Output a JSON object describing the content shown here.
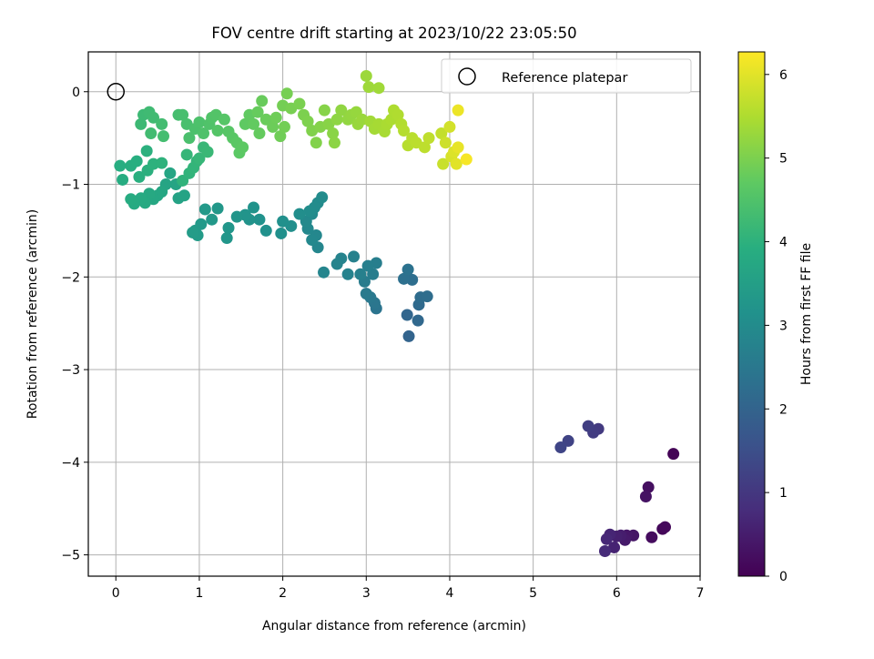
{
  "chart_data": {
    "type": "scatter",
    "title": "FOV centre drift starting at 2023/10/22 23:05:50",
    "xlabel": "Angular distance from reference (arcmin)",
    "ylabel": "Rotation from reference (arcmin)",
    "xlim": [
      -0.33,
      7.0
    ],
    "ylim": [
      -5.23,
      0.43
    ],
    "xticks": [
      0,
      1,
      2,
      3,
      4,
      5,
      6,
      7
    ],
    "yticks": [
      0,
      -1,
      -2,
      -3,
      -4,
      -5
    ],
    "xtick_labels": [
      "0",
      "1",
      "2",
      "3",
      "4",
      "5",
      "6",
      "7"
    ],
    "ytick_labels": [
      "0",
      "−1",
      "−2",
      "−3",
      "−4",
      "−5"
    ],
    "grid": true,
    "legend": {
      "position": "top-right",
      "entries": [
        "Reference platepar"
      ]
    },
    "reference_point": {
      "x": 0,
      "y": 0,
      "marker": "open-circle"
    },
    "colorbar": {
      "label": "Hours from first FF file",
      "colormap": "viridis",
      "range": [
        0,
        6.27
      ],
      "ticks": [
        0,
        1,
        2,
        3,
        4,
        5,
        6
      ],
      "tick_labels": [
        "0",
        "1",
        "2",
        "3",
        "4",
        "5",
        "6"
      ]
    },
    "points": [
      {
        "x": 6.68,
        "y": -3.91,
        "t": 0.05
      },
      {
        "x": 6.55,
        "y": -4.72,
        "t": 0.1
      },
      {
        "x": 6.58,
        "y": -4.7,
        "t": 0.15
      },
      {
        "x": 6.42,
        "y": -4.81,
        "t": 0.2
      },
      {
        "x": 6.38,
        "y": -4.27,
        "t": 0.25
      },
      {
        "x": 6.35,
        "y": -4.37,
        "t": 0.3
      },
      {
        "x": 6.2,
        "y": -4.79,
        "t": 0.35
      },
      {
        "x": 6.12,
        "y": -4.79,
        "t": 0.4
      },
      {
        "x": 6.1,
        "y": -4.84,
        "t": 0.45
      },
      {
        "x": 6.05,
        "y": -4.79,
        "t": 0.5
      },
      {
        "x": 6.0,
        "y": -4.8,
        "t": 0.55
      },
      {
        "x": 5.97,
        "y": -4.92,
        "t": 0.6
      },
      {
        "x": 5.92,
        "y": -4.78,
        "t": 0.65
      },
      {
        "x": 5.88,
        "y": -4.83,
        "t": 0.7
      },
      {
        "x": 5.86,
        "y": -4.96,
        "t": 0.75
      },
      {
        "x": 5.78,
        "y": -3.64,
        "t": 1.05
      },
      {
        "x": 5.72,
        "y": -3.68,
        "t": 1.1
      },
      {
        "x": 5.66,
        "y": -3.61,
        "t": 1.15
      },
      {
        "x": 5.42,
        "y": -3.77,
        "t": 1.25
      },
      {
        "x": 5.33,
        "y": -3.84,
        "t": 1.3
      },
      {
        "x": 3.51,
        "y": -2.64,
        "t": 2.0
      },
      {
        "x": 3.49,
        "y": -2.41,
        "t": 2.05
      },
      {
        "x": 3.62,
        "y": -2.47,
        "t": 2.1
      },
      {
        "x": 3.63,
        "y": -2.3,
        "t": 2.15
      },
      {
        "x": 3.65,
        "y": -2.22,
        "t": 2.2
      },
      {
        "x": 3.73,
        "y": -2.21,
        "t": 2.22
      },
      {
        "x": 3.55,
        "y": -2.03,
        "t": 2.25
      },
      {
        "x": 3.45,
        "y": -2.02,
        "t": 2.3
      },
      {
        "x": 3.5,
        "y": -1.92,
        "t": 2.35
      },
      {
        "x": 3.12,
        "y": -2.34,
        "t": 2.4
      },
      {
        "x": 3.1,
        "y": -2.28,
        "t": 2.45
      },
      {
        "x": 3.05,
        "y": -2.22,
        "t": 2.5
      },
      {
        "x": 3.0,
        "y": -2.18,
        "t": 2.55
      },
      {
        "x": 2.98,
        "y": -2.05,
        "t": 2.6
      },
      {
        "x": 3.08,
        "y": -1.97,
        "t": 2.62
      },
      {
        "x": 3.12,
        "y": -1.85,
        "t": 2.65
      },
      {
        "x": 3.02,
        "y": -1.88,
        "t": 2.68
      },
      {
        "x": 2.93,
        "y": -1.97,
        "t": 2.7
      },
      {
        "x": 2.85,
        "y": -1.78,
        "t": 2.72
      },
      {
        "x": 2.78,
        "y": -1.97,
        "t": 2.75
      },
      {
        "x": 2.7,
        "y": -1.8,
        "t": 2.78
      },
      {
        "x": 2.65,
        "y": -1.86,
        "t": 2.8
      },
      {
        "x": 2.49,
        "y": -1.95,
        "t": 2.82
      },
      {
        "x": 2.42,
        "y": -1.68,
        "t": 2.85
      },
      {
        "x": 2.4,
        "y": -1.55,
        "t": 2.87
      },
      {
        "x": 2.35,
        "y": -1.6,
        "t": 2.9
      },
      {
        "x": 2.3,
        "y": -1.48,
        "t": 2.92
      },
      {
        "x": 2.28,
        "y": -1.4,
        "t": 2.94
      },
      {
        "x": 2.35,
        "y": -1.32,
        "t": 2.96
      },
      {
        "x": 2.42,
        "y": -1.2,
        "t": 2.98
      },
      {
        "x": 2.47,
        "y": -1.14,
        "t": 3.0
      },
      {
        "x": 2.38,
        "y": -1.25,
        "t": 3.02
      },
      {
        "x": 2.32,
        "y": -1.29,
        "t": 3.04
      },
      {
        "x": 2.2,
        "y": -1.32,
        "t": 3.06
      },
      {
        "x": 2.1,
        "y": -1.45,
        "t": 3.08
      },
      {
        "x": 2.0,
        "y": -1.4,
        "t": 3.1
      },
      {
        "x": 1.98,
        "y": -1.53,
        "t": 3.12
      },
      {
        "x": 1.8,
        "y": -1.5,
        "t": 3.14
      },
      {
        "x": 1.72,
        "y": -1.38,
        "t": 3.16
      },
      {
        "x": 1.65,
        "y": -1.25,
        "t": 3.18
      },
      {
        "x": 1.6,
        "y": -1.38,
        "t": 3.2
      },
      {
        "x": 1.55,
        "y": -1.33,
        "t": 3.22
      },
      {
        "x": 1.45,
        "y": -1.35,
        "t": 3.24
      },
      {
        "x": 1.35,
        "y": -1.47,
        "t": 3.26
      },
      {
        "x": 1.33,
        "y": -1.58,
        "t": 3.28
      },
      {
        "x": 1.22,
        "y": -1.26,
        "t": 3.3
      },
      {
        "x": 1.15,
        "y": -1.38,
        "t": 3.32
      },
      {
        "x": 1.07,
        "y": -1.27,
        "t": 3.34
      },
      {
        "x": 1.02,
        "y": -1.43,
        "t": 3.36
      },
      {
        "x": 0.95,
        "y": -1.5,
        "t": 3.38
      },
      {
        "x": 0.98,
        "y": -1.55,
        "t": 3.4
      },
      {
        "x": 0.92,
        "y": -1.52,
        "t": 3.42
      },
      {
        "x": 0.75,
        "y": -1.15,
        "t": 3.6
      },
      {
        "x": 0.82,
        "y": -1.12,
        "t": 3.62
      },
      {
        "x": 0.72,
        "y": -1.0,
        "t": 3.64
      },
      {
        "x": 0.6,
        "y": -1.0,
        "t": 3.66
      },
      {
        "x": 0.65,
        "y": -0.88,
        "t": 3.68
      },
      {
        "x": 0.55,
        "y": -1.08,
        "t": 3.7
      },
      {
        "x": 0.5,
        "y": -1.12,
        "t": 3.72
      },
      {
        "x": 0.45,
        "y": -1.16,
        "t": 3.74
      },
      {
        "x": 0.4,
        "y": -1.1,
        "t": 3.76
      },
      {
        "x": 0.35,
        "y": -1.2,
        "t": 3.78
      },
      {
        "x": 0.3,
        "y": -1.15,
        "t": 3.8
      },
      {
        "x": 0.22,
        "y": -1.21,
        "t": 3.82
      },
      {
        "x": 0.18,
        "y": -1.16,
        "t": 3.84
      },
      {
        "x": 0.08,
        "y": -0.95,
        "t": 3.86
      },
      {
        "x": 0.05,
        "y": -0.8,
        "t": 3.88
      },
      {
        "x": 0.18,
        "y": -0.8,
        "t": 3.9
      },
      {
        "x": 0.25,
        "y": -0.75,
        "t": 3.92
      },
      {
        "x": 0.28,
        "y": -0.92,
        "t": 3.94
      },
      {
        "x": 0.38,
        "y": -0.85,
        "t": 3.96
      },
      {
        "x": 0.37,
        "y": -0.64,
        "t": 3.98
      },
      {
        "x": 0.45,
        "y": -0.78,
        "t": 4.0
      },
      {
        "x": 0.55,
        "y": -0.77,
        "t": 4.02
      },
      {
        "x": 0.8,
        "y": -0.96,
        "t": 4.04
      },
      {
        "x": 0.88,
        "y": -0.88,
        "t": 4.06
      },
      {
        "x": 0.93,
        "y": -0.82,
        "t": 4.08
      },
      {
        "x": 0.97,
        "y": -0.75,
        "t": 4.1
      },
      {
        "x": 0.85,
        "y": -0.68,
        "t": 4.12
      },
      {
        "x": 1.0,
        "y": -0.72,
        "t": 4.14
      },
      {
        "x": 1.05,
        "y": -0.6,
        "t": 4.16
      },
      {
        "x": 1.1,
        "y": -0.65,
        "t": 4.18
      },
      {
        "x": 0.3,
        "y": -0.35,
        "t": 4.22
      },
      {
        "x": 0.33,
        "y": -0.25,
        "t": 4.24
      },
      {
        "x": 0.4,
        "y": -0.22,
        "t": 4.26
      },
      {
        "x": 0.45,
        "y": -0.28,
        "t": 4.28
      },
      {
        "x": 0.42,
        "y": -0.45,
        "t": 4.3
      },
      {
        "x": 0.55,
        "y": -0.35,
        "t": 4.32
      },
      {
        "x": 0.57,
        "y": -0.48,
        "t": 4.34
      },
      {
        "x": 0.75,
        "y": -0.25,
        "t": 4.36
      },
      {
        "x": 0.8,
        "y": -0.25,
        "t": 4.38
      },
      {
        "x": 0.85,
        "y": -0.35,
        "t": 4.4
      },
      {
        "x": 0.88,
        "y": -0.5,
        "t": 4.42
      },
      {
        "x": 0.95,
        "y": -0.4,
        "t": 4.44
      },
      {
        "x": 1.0,
        "y": -0.33,
        "t": 4.46
      },
      {
        "x": 1.05,
        "y": -0.45,
        "t": 4.48
      },
      {
        "x": 1.12,
        "y": -0.35,
        "t": 4.5
      },
      {
        "x": 1.15,
        "y": -0.28,
        "t": 4.52
      },
      {
        "x": 1.2,
        "y": -0.25,
        "t": 4.54
      },
      {
        "x": 1.22,
        "y": -0.42,
        "t": 4.56
      },
      {
        "x": 1.3,
        "y": -0.3,
        "t": 4.58
      },
      {
        "x": 1.35,
        "y": -0.43,
        "t": 4.6
      },
      {
        "x": 1.4,
        "y": -0.5,
        "t": 4.62
      },
      {
        "x": 1.45,
        "y": -0.55,
        "t": 4.64
      },
      {
        "x": 1.48,
        "y": -0.66,
        "t": 4.66
      },
      {
        "x": 1.52,
        "y": -0.6,
        "t": 4.68
      },
      {
        "x": 1.55,
        "y": -0.35,
        "t": 4.7
      },
      {
        "x": 1.6,
        "y": -0.25,
        "t": 4.72
      },
      {
        "x": 1.65,
        "y": -0.35,
        "t": 4.74
      },
      {
        "x": 1.72,
        "y": -0.45,
        "t": 4.76
      },
      {
        "x": 1.7,
        "y": -0.22,
        "t": 4.78
      },
      {
        "x": 1.75,
        "y": -0.1,
        "t": 4.8
      },
      {
        "x": 1.8,
        "y": -0.3,
        "t": 4.82
      },
      {
        "x": 1.88,
        "y": -0.38,
        "t": 4.84
      },
      {
        "x": 1.92,
        "y": -0.28,
        "t": 4.86
      },
      {
        "x": 1.97,
        "y": -0.48,
        "t": 4.88
      },
      {
        "x": 2.02,
        "y": -0.38,
        "t": 4.9
      },
      {
        "x": 2.0,
        "y": -0.15,
        "t": 4.92
      },
      {
        "x": 2.05,
        "y": -0.02,
        "t": 4.94
      },
      {
        "x": 2.1,
        "y": -0.18,
        "t": 4.96
      },
      {
        "x": 2.2,
        "y": -0.13,
        "t": 4.98
      },
      {
        "x": 2.25,
        "y": -0.25,
        "t": 5.0
      },
      {
        "x": 2.3,
        "y": -0.32,
        "t": 5.02
      },
      {
        "x": 2.35,
        "y": -0.42,
        "t": 5.04
      },
      {
        "x": 2.4,
        "y": -0.55,
        "t": 5.06
      },
      {
        "x": 2.45,
        "y": -0.38,
        "t": 5.08
      },
      {
        "x": 2.5,
        "y": -0.2,
        "t": 5.1
      },
      {
        "x": 2.55,
        "y": -0.35,
        "t": 5.12
      },
      {
        "x": 2.6,
        "y": -0.45,
        "t": 5.14
      },
      {
        "x": 2.62,
        "y": -0.55,
        "t": 5.16
      },
      {
        "x": 2.65,
        "y": -0.3,
        "t": 5.18
      },
      {
        "x": 2.7,
        "y": -0.2,
        "t": 5.2
      },
      {
        "x": 2.78,
        "y": -0.3,
        "t": 5.22
      },
      {
        "x": 2.82,
        "y": -0.25,
        "t": 5.24
      },
      {
        "x": 2.88,
        "y": -0.22,
        "t": 5.26
      },
      {
        "x": 2.9,
        "y": -0.35,
        "t": 5.28
      },
      {
        "x": 2.95,
        "y": -0.3,
        "t": 5.3
      },
      {
        "x": 3.0,
        "y": 0.17,
        "t": 5.32
      },
      {
        "x": 3.03,
        "y": 0.05,
        "t": 5.34
      },
      {
        "x": 3.15,
        "y": 0.04,
        "t": 5.36
      },
      {
        "x": 3.05,
        "y": -0.32,
        "t": 5.38
      },
      {
        "x": 3.1,
        "y": -0.4,
        "t": 5.4
      },
      {
        "x": 3.15,
        "y": -0.35,
        "t": 5.42
      },
      {
        "x": 3.22,
        "y": -0.43,
        "t": 5.44
      },
      {
        "x": 3.25,
        "y": -0.35,
        "t": 5.46
      },
      {
        "x": 3.3,
        "y": -0.3,
        "t": 5.48
      },
      {
        "x": 3.33,
        "y": -0.2,
        "t": 5.5
      },
      {
        "x": 3.38,
        "y": -0.25,
        "t": 5.52
      },
      {
        "x": 3.42,
        "y": -0.35,
        "t": 5.54
      },
      {
        "x": 3.45,
        "y": -0.42,
        "t": 5.56
      },
      {
        "x": 3.5,
        "y": -0.58,
        "t": 5.58
      },
      {
        "x": 3.55,
        "y": -0.5,
        "t": 5.6
      },
      {
        "x": 3.6,
        "y": -0.55,
        "t": 5.62
      },
      {
        "x": 3.7,
        "y": -0.6,
        "t": 5.64
      },
      {
        "x": 3.75,
        "y": -0.5,
        "t": 5.66
      },
      {
        "x": 3.9,
        "y": -0.45,
        "t": 5.7
      },
      {
        "x": 3.92,
        "y": -0.78,
        "t": 5.75
      },
      {
        "x": 3.95,
        "y": -0.55,
        "t": 5.8
      },
      {
        "x": 4.0,
        "y": -0.38,
        "t": 5.85
      },
      {
        "x": 4.02,
        "y": -0.7,
        "t": 5.9
      },
      {
        "x": 4.05,
        "y": -0.65,
        "t": 5.95
      },
      {
        "x": 4.08,
        "y": -0.78,
        "t": 6.0
      },
      {
        "x": 4.1,
        "y": -0.6,
        "t": 6.05
      },
      {
        "x": 4.1,
        "y": -0.2,
        "t": 6.1
      },
      {
        "x": 4.2,
        "y": -0.73,
        "t": 6.2
      }
    ]
  }
}
